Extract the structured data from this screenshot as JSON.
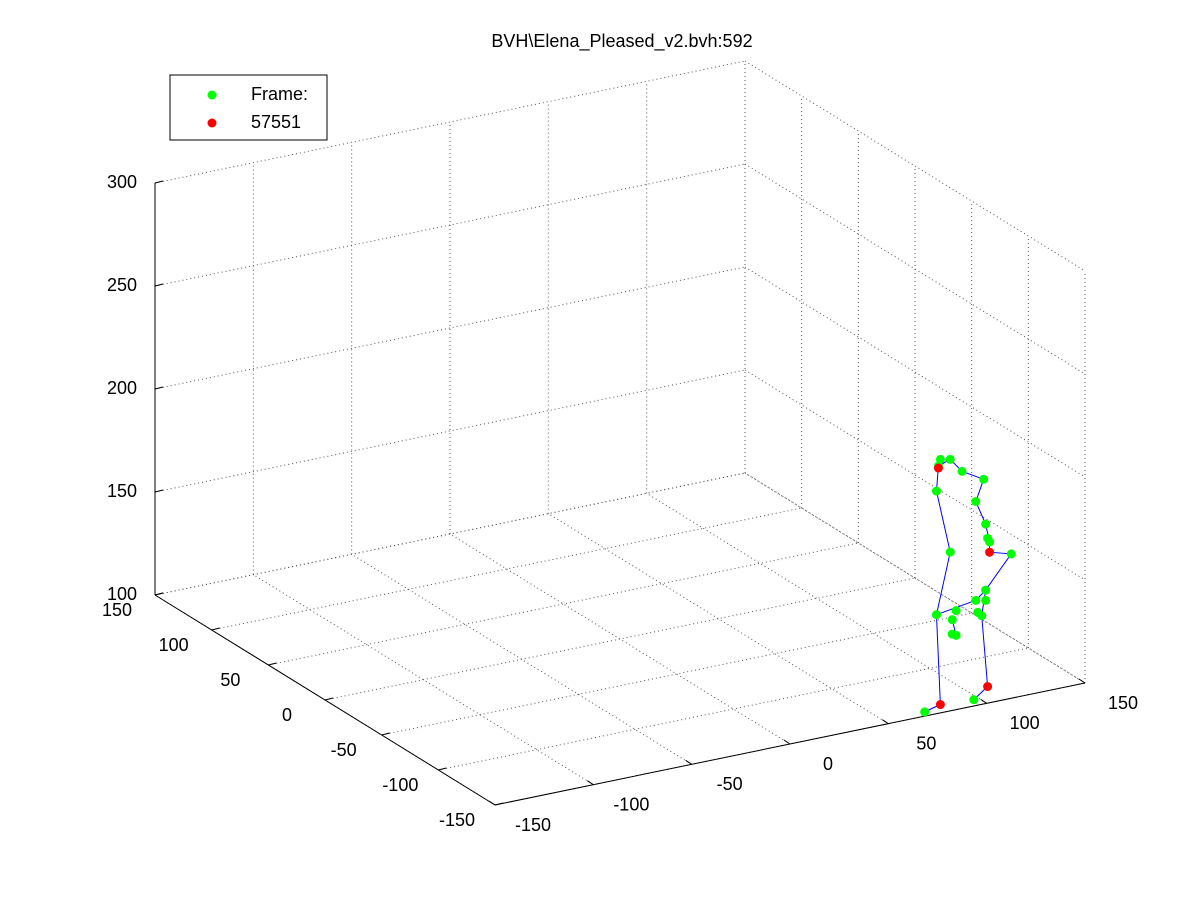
{
  "chart_data": {
    "type": "scatter3d",
    "title": "BVH\\Elena_Pleased_v2.bvh:592",
    "xlim": [
      -150,
      150
    ],
    "ylim": [
      -150,
      150
    ],
    "zlim": [
      100,
      300
    ],
    "xticks": [
      -150,
      -100,
      -50,
      0,
      50,
      100,
      150
    ],
    "yticks": [
      -150,
      -100,
      -50,
      0,
      50,
      100,
      150
    ],
    "zticks": [
      100,
      150,
      200,
      250,
      300
    ],
    "grid": true,
    "legend": "upper left",
    "series": [
      {
        "name": "Frame:",
        "color": "#00ff00",
        "x": [
          88,
          93,
          87,
          99,
          110,
          86,
          106,
          111,
          112,
          113,
          124,
          93,
          111,
          106,
          111,
          107,
          109,
          86,
          96,
          94,
          94,
          96,
          80,
          105
        ],
        "y": [
          -130,
          -130,
          -130,
          -130,
          -130,
          -130,
          -130,
          -130,
          -130,
          -130,
          -130,
          -130,
          -130,
          -130,
          -130,
          -130,
          -130,
          -130,
          -130,
          -130,
          -130,
          -130,
          -130,
          -130
        ],
        "z": [
          214,
          213,
          211,
          206,
          200,
          199,
          190,
          178,
          171,
          169,
          161,
          168,
          146,
          142,
          141,
          136,
          134,
          139,
          139,
          135,
          128,
          127,
          93,
          94
        ]
      },
      {
        "name": "57551",
        "color": "#ff0000",
        "x": [
          87,
          113,
          112,
          88
        ],
        "y": [
          -130,
          -130,
          -130,
          -130
        ],
        "z": [
          210,
          164,
          99,
          95
        ]
      }
    ],
    "lines": {
      "color": "#0000ff",
      "x": [
        88,
        87,
        86,
        93,
        86,
        88,
        80,
        null,
        87,
        93,
        99,
        110,
        106,
        111,
        113,
        113,
        124,
        111,
        106,
        86,
        null,
        109,
        112,
        105,
        null,
        94,
        96,
        null,
        111,
        109
      ],
      "y": [
        -130,
        -130,
        -130,
        -130,
        -130,
        -130,
        -130,
        null,
        -130,
        -130,
        -130,
        -130,
        -130,
        -130,
        -130,
        -130,
        -130,
        -130,
        -130,
        -130,
        null,
        -130,
        -130,
        -130,
        null,
        -130,
        -130,
        null,
        -130,
        -130
      ],
      "z": [
        214,
        211,
        199,
        168,
        139,
        95,
        93,
        null,
        211,
        213,
        206,
        200,
        190,
        178,
        169,
        164,
        161,
        146,
        142,
        139,
        null,
        134,
        99,
        94,
        null,
        135,
        127,
        null,
        146,
        134
      ]
    }
  }
}
